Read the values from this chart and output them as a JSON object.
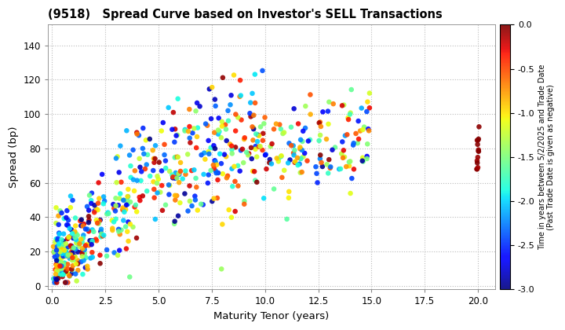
{
  "title": "(9518)   Spread Curve based on Investor's SELL Transactions",
  "xlabel": "Maturity Tenor (years)",
  "ylabel": "Spread (bp)",
  "colorbar_label": "Time in years between 5/2/2025 and Trade Date\n(Past Trade Date is given as negative)",
  "xlim": [
    -0.2,
    20.8
  ],
  "ylim": [
    -2,
    152
  ],
  "xticks": [
    0.0,
    2.5,
    5.0,
    7.5,
    10.0,
    12.5,
    15.0,
    17.5,
    20.0
  ],
  "yticks": [
    0,
    20,
    40,
    60,
    80,
    100,
    120,
    140
  ],
  "cmap": "jet",
  "vmin": -3.0,
  "vmax": 0.0,
  "colorbar_ticks": [
    0.0,
    -0.5,
    -1.0,
    -1.5,
    -2.0,
    -2.5,
    -3.0
  ],
  "background_color": "#ffffff",
  "grid_color": "#bbbbbb",
  "marker_size": 22,
  "seed": 12345,
  "figsize": [
    7.2,
    4.2
  ],
  "dpi": 100
}
